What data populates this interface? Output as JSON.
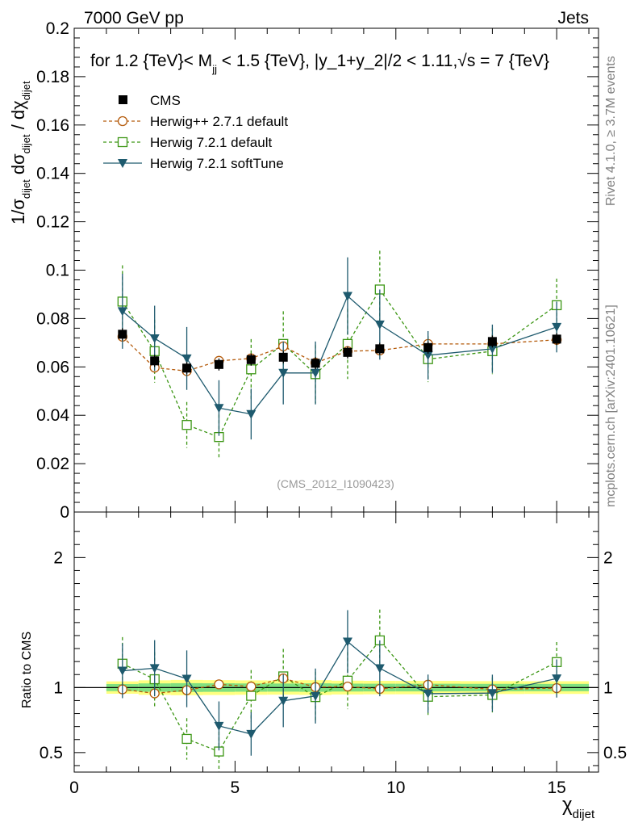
{
  "header": {
    "left_title": "7000 GeV pp",
    "right_title": "Jets"
  },
  "plot_title": {
    "prefix": "for 1.2 {TeV}< M",
    "sub": "jj",
    "middle": " < 1.5 {TeV}, |y_1+y_2|/2 < 1.11,",
    "sqrt": "√s",
    "suffix": " = 7 {TeV}"
  },
  "side_labels": {
    "rivet": "Rivet 4.1.0, ≥ 3.7M events",
    "mcplots": "mcplots.cern.ch [arXiv:2401.10621]"
  },
  "watermark": "(CMS_2012_I1090423)",
  "main_ylabel": {
    "a": "1/σ",
    "a_sub": "dijet",
    "b": " dσ",
    "b_sub": "dijet",
    "c": " / dχ",
    "c_sub": "dijet"
  },
  "ratio_ylabel": "Ratio to CMS",
  "xlabel": {
    "main": "χ",
    "sub": "dijet"
  },
  "legend": [
    {
      "id": "cms",
      "label": "CMS"
    },
    {
      "id": "h271",
      "label": "Herwig++ 2.7.1 default"
    },
    {
      "id": "h721",
      "label": "Herwig 7.2.1 default"
    },
    {
      "id": "h721s",
      "label": "Herwig 7.2.1 softTune"
    }
  ],
  "colors": {
    "cms": "#000000",
    "h271": "#b45a0a",
    "h721": "#3c9614",
    "h721s": "#1e5a6e",
    "band_outer": "#ffff80",
    "band_inner": "#80e080"
  },
  "chart_data": {
    "type": "scatter",
    "title": "for 1.2 {TeV}< M_jj < 1.5 {TeV}, |y_1+y_2|/2 < 1.11, √s = 7 {TeV}",
    "xlabel": "χ_dijet",
    "ylabel": "1/σ_dijet dσ_dijet / dχ_dijet",
    "xlim": [
      0,
      16.3
    ],
    "ylim": [
      0,
      0.2
    ],
    "ratio_ylim": [
      0.35,
      2.35
    ],
    "x_ticks": [
      0,
      5,
      10,
      15
    ],
    "y_ticks": [
      0,
      0.02,
      0.04,
      0.06,
      0.08,
      0.1,
      0.12,
      0.14,
      0.16,
      0.18,
      0.2
    ],
    "y_tick_labels": [
      "0",
      "0.02",
      "0.04",
      "0.06",
      "0.08",
      "0.1",
      "0.12",
      "0.14",
      "0.16",
      "0.18",
      "0.2"
    ],
    "ratio_ticks": [
      0.5,
      1,
      2
    ],
    "ratio_tick_labels": [
      "0.5",
      "1",
      "2"
    ],
    "x_tick_labels": [
      "0",
      "5",
      "10",
      "15"
    ],
    "x": [
      1.5,
      2.5,
      3.5,
      4.5,
      5.5,
      6.5,
      7.5,
      8.5,
      9.5,
      11,
      13,
      15
    ],
    "x_bins": [
      [
        1,
        2
      ],
      [
        2,
        3
      ],
      [
        3,
        4
      ],
      [
        4,
        5
      ],
      [
        5,
        6
      ],
      [
        6,
        7
      ],
      [
        7,
        8
      ],
      [
        8,
        9
      ],
      [
        9,
        10
      ],
      [
        10,
        12
      ],
      [
        12,
        14
      ],
      [
        14,
        16
      ]
    ],
    "series": [
      {
        "id": "cms",
        "name": "CMS",
        "values": [
          0.0735,
          0.0625,
          0.0595,
          0.061,
          0.063,
          0.064,
          0.0615,
          0.066,
          0.0675,
          0.068,
          0.0705,
          0.0715
        ],
        "errors": [
          0.0025,
          0.0025,
          0.0025,
          0.0025,
          0.0025,
          0.0025,
          0.0025,
          0.0025,
          0.0025,
          0.0025,
          0.0025,
          0.0025
        ]
      },
      {
        "id": "h271",
        "name": "Herwig++ 2.7.1 default",
        "values": [
          0.0725,
          0.0597,
          0.0583,
          0.0625,
          0.0635,
          0.0685,
          0.0617,
          0.0665,
          0.0668,
          0.0695,
          0.0695,
          0.0712
        ],
        "errors": [
          0.0015,
          0.0015,
          0.0015,
          0.0015,
          0.0015,
          0.0015,
          0.0015,
          0.0015,
          0.0015,
          0.0015,
          0.0015,
          0.0015
        ]
      },
      {
        "id": "h721",
        "name": "Herwig 7.2.1 default",
        "values": [
          0.087,
          0.0665,
          0.036,
          0.031,
          0.059,
          0.0695,
          0.057,
          0.0695,
          0.092,
          0.0632,
          0.0665,
          0.0855
        ],
        "errors": [
          0.015,
          0.013,
          0.0095,
          0.0093,
          0.0125,
          0.0135,
          0.012,
          0.0145,
          0.016,
          0.0095,
          0.0095,
          0.011
        ]
      },
      {
        "id": "h721s",
        "name": "Herwig 7.2.1 softTune",
        "values": [
          0.083,
          0.0718,
          0.0635,
          0.043,
          0.0405,
          0.0575,
          0.0575,
          0.0893,
          0.0775,
          0.0648,
          0.0675,
          0.0765
        ],
        "errors": [
          0.0155,
          0.0135,
          0.013,
          0.0115,
          0.0105,
          0.013,
          0.013,
          0.016,
          0.0145,
          0.01,
          0.01,
          0.0105
        ]
      }
    ]
  }
}
